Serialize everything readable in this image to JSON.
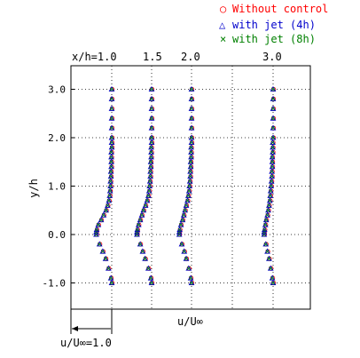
{
  "chart_data": {
    "type": "scatter",
    "y_axis": {
      "label": "y/h",
      "ticks": [
        "3.0",
        "2.0",
        "1.0",
        "0.0",
        "-1.0"
      ],
      "tick_values": [
        3.0,
        2.0,
        1.0,
        0.0,
        -1.0
      ],
      "range": [
        -1.5,
        3.5
      ]
    },
    "x_axis": {
      "label": "u/U∞",
      "note_label": "u/U∞=1.0"
    },
    "station_labels": [
      "x/h=1.0",
      "1.5",
      "2.0",
      "3.0"
    ],
    "stations": [
      1.0,
      1.5,
      2.0,
      3.0
    ],
    "legend": {
      "position": "top-right",
      "entries": [
        {
          "marker": "○",
          "label": "Without control",
          "color": "#ff0000"
        },
        {
          "marker": "△",
          "label": "with jet (4h)",
          "color": "#0000cc"
        },
        {
          "marker": "×",
          "label": "with jet (8h)",
          "color": "#008000"
        }
      ]
    },
    "y_values": [
      -1.0,
      -0.9,
      -0.7,
      -0.5,
      -0.35,
      -0.2,
      0.0,
      0.05,
      0.1,
      0.2,
      0.3,
      0.4,
      0.5,
      0.6,
      0.7,
      0.8,
      0.9,
      1.0,
      1.1,
      1.2,
      1.3,
      1.4,
      1.5,
      1.6,
      1.7,
      1.8,
      1.9,
      2.0,
      2.2,
      2.4,
      2.6,
      2.8,
      3.0
    ],
    "profiles": [
      {
        "station": 1.0,
        "u": [
          1.0,
          0.98,
          0.92,
          0.85,
          0.78,
          0.7,
          0.62,
          0.62,
          0.63,
          0.67,
          0.74,
          0.8,
          0.86,
          0.9,
          0.93,
          0.95,
          0.96,
          0.97,
          0.97,
          0.98,
          0.98,
          0.99,
          0.99,
          0.99,
          0.99,
          1.0,
          1.0,
          1.0,
          1.0,
          1.0,
          1.0,
          1.0,
          1.0
        ]
      },
      {
        "station": 1.5,
        "u": [
          1.0,
          0.98,
          0.92,
          0.84,
          0.78,
          0.72,
          0.64,
          0.64,
          0.65,
          0.68,
          0.72,
          0.76,
          0.8,
          0.85,
          0.89,
          0.92,
          0.94,
          0.95,
          0.96,
          0.97,
          0.97,
          0.98,
          0.98,
          0.99,
          0.99,
          0.99,
          1.0,
          1.0,
          1.0,
          1.0,
          1.0,
          1.0,
          1.0
        ]
      },
      {
        "station": 2.0,
        "u": [
          1.0,
          0.98,
          0.93,
          0.87,
          0.82,
          0.76,
          0.7,
          0.7,
          0.71,
          0.74,
          0.78,
          0.81,
          0.84,
          0.87,
          0.9,
          0.92,
          0.94,
          0.95,
          0.96,
          0.97,
          0.97,
          0.98,
          0.98,
          0.99,
          0.99,
          0.99,
          1.0,
          1.0,
          1.0,
          1.0,
          1.0,
          1.0,
          1.0
        ]
      },
      {
        "station": 3.0,
        "u": [
          1.0,
          0.98,
          0.94,
          0.9,
          0.86,
          0.82,
          0.78,
          0.78,
          0.79,
          0.81,
          0.83,
          0.86,
          0.88,
          0.9,
          0.92,
          0.93,
          0.94,
          0.95,
          0.96,
          0.97,
          0.97,
          0.98,
          0.98,
          0.98,
          0.99,
          0.99,
          0.99,
          1.0,
          1.0,
          1.0,
          1.0,
          1.0,
          1.0
        ]
      }
    ]
  }
}
